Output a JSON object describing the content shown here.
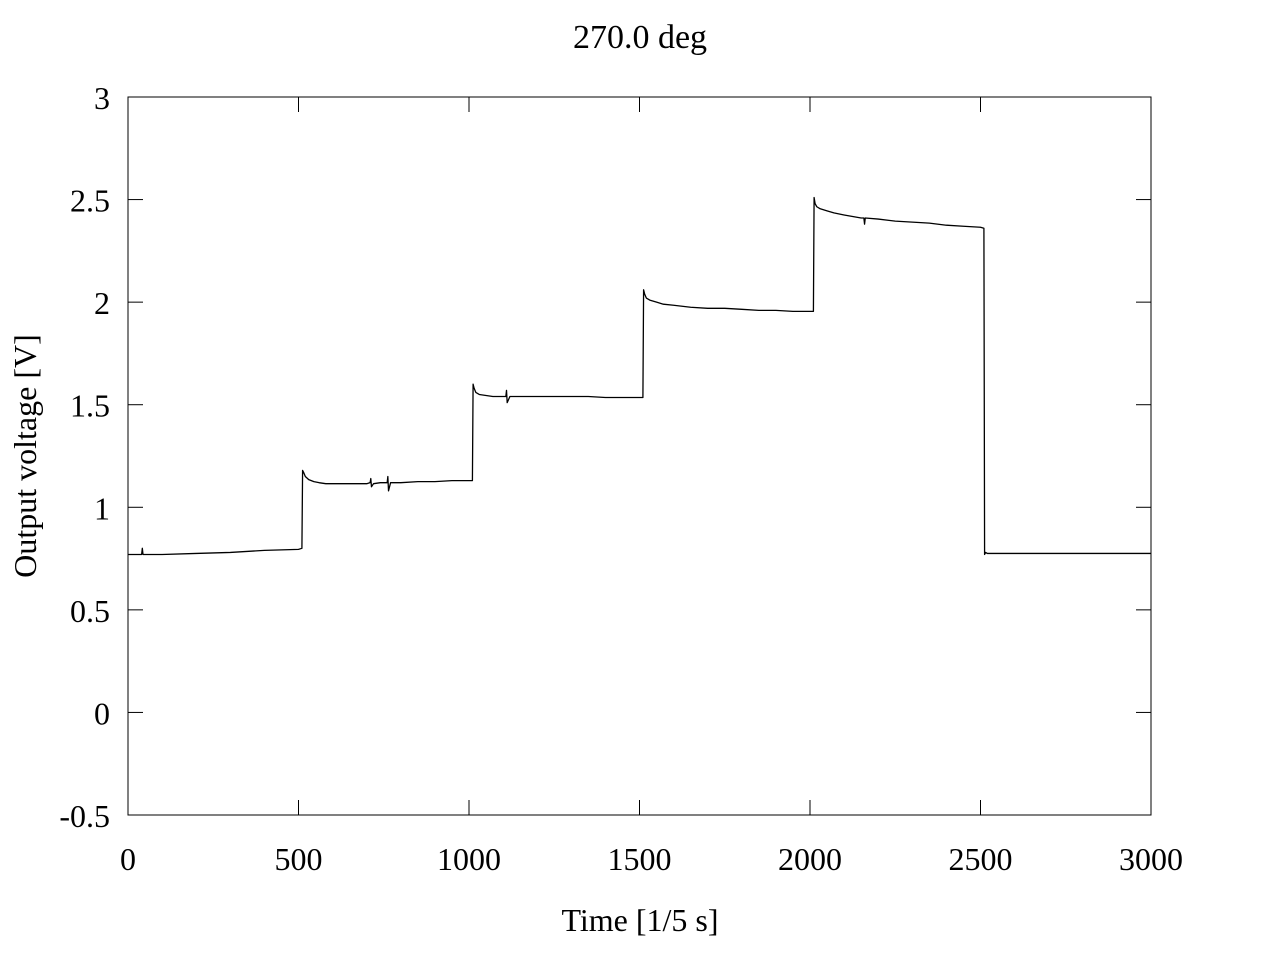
{
  "chart_data": {
    "type": "line",
    "title": "270.0 deg",
    "xlabel": "Time [1/5 s]",
    "ylabel": "Output voltage [V]",
    "xlim": [
      0,
      3000
    ],
    "ylim": [
      -0.5,
      3
    ],
    "x_ticks": [
      0,
      500,
      1000,
      1500,
      2000,
      2500,
      3000
    ],
    "y_ticks": [
      -0.5,
      0,
      0.5,
      1,
      1.5,
      2,
      2.5,
      3
    ],
    "x_tick_labels": [
      "0",
      "500",
      "1000",
      "1500",
      "2000",
      "2500",
      "3000"
    ],
    "y_tick_labels": [
      "-0.5",
      "0",
      "0.5",
      "1",
      "1.5",
      "2",
      "2.5",
      "3"
    ],
    "grid": false,
    "legend": false,
    "line_color": "#000000",
    "series": [
      {
        "x": [
          0,
          40,
          42,
          44,
          100,
          200,
          300,
          400,
          500,
          510,
          512,
          515,
          520,
          530,
          545,
          560,
          580,
          600,
          620,
          650,
          680,
          700,
          710,
          712,
          714,
          720,
          740,
          760,
          762,
          764,
          770,
          800,
          850,
          900,
          950,
          1000,
          1010,
          1012,
          1015,
          1020,
          1030,
          1050,
          1070,
          1100,
          1108,
          1110,
          1112,
          1120,
          1150,
          1200,
          1250,
          1300,
          1350,
          1400,
          1450,
          1500,
          1510,
          1512,
          1515,
          1520,
          1530,
          1550,
          1570,
          1600,
          1650,
          1700,
          1750,
          1800,
          1850,
          1900,
          1950,
          2000,
          2010,
          2012,
          2015,
          2020,
          2030,
          2050,
          2070,
          2100,
          2150,
          2158,
          2160,
          2162,
          2200,
          2250,
          2300,
          2350,
          2400,
          2450,
          2500,
          2510,
          2512,
          2515,
          2520,
          2550,
          2600,
          2700,
          2800,
          2900,
          3000
        ],
        "y": [
          0.77,
          0.77,
          0.8,
          0.77,
          0.77,
          0.775,
          0.78,
          0.79,
          0.795,
          0.8,
          1.18,
          1.17,
          1.15,
          1.135,
          1.125,
          1.12,
          1.115,
          1.115,
          1.115,
          1.115,
          1.115,
          1.115,
          1.12,
          1.14,
          1.1,
          1.115,
          1.12,
          1.12,
          1.15,
          1.08,
          1.12,
          1.12,
          1.125,
          1.125,
          1.13,
          1.13,
          1.13,
          1.6,
          1.58,
          1.56,
          1.55,
          1.545,
          1.54,
          1.54,
          1.54,
          1.57,
          1.51,
          1.54,
          1.54,
          1.54,
          1.54,
          1.54,
          1.54,
          1.535,
          1.535,
          1.535,
          1.535,
          2.06,
          2.04,
          2.02,
          2.01,
          2.0,
          1.99,
          1.985,
          1.975,
          1.97,
          1.97,
          1.965,
          1.96,
          1.96,
          1.955,
          1.955,
          1.955,
          2.51,
          2.48,
          2.465,
          2.455,
          2.445,
          2.435,
          2.425,
          2.41,
          2.41,
          2.38,
          2.41,
          2.405,
          2.395,
          2.39,
          2.385,
          2.375,
          2.37,
          2.365,
          2.36,
          0.77,
          0.78,
          0.775,
          0.775,
          0.775,
          0.775,
          0.775,
          0.775,
          0.775
        ]
      }
    ]
  }
}
